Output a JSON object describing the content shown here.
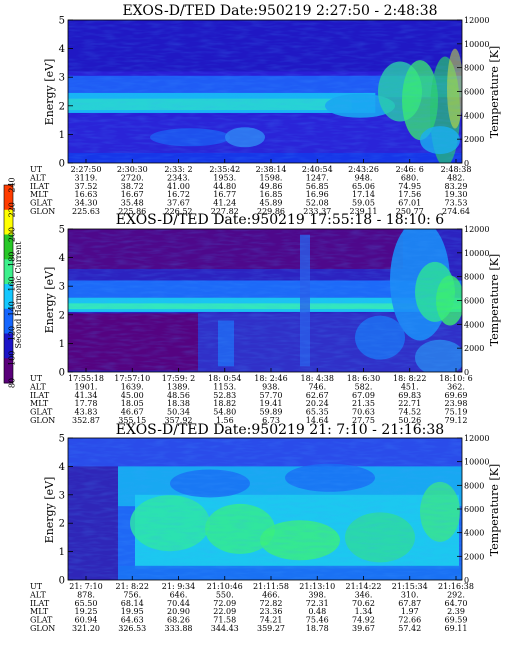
{
  "chart_data": [
    {
      "type": "heatmap",
      "title": "EXOS-D/TED   Date:950219  2:27:50 - 2:48:38",
      "ylabel": "Energy [eV]",
      "y2label": "Temperature [K]",
      "ylim": [
        0,
        5
      ],
      "y2lim": [
        0,
        12000
      ],
      "yticks": [
        "0",
        "1",
        "2",
        "3",
        "4",
        "5"
      ],
      "y2ticks": [
        "0",
        "2000",
        "4000",
        "6000",
        "8000",
        "10000",
        "12000"
      ],
      "row_labels": [
        "UT",
        "ALT",
        "ILAT",
        "MLT",
        "GLAT",
        "GLON"
      ],
      "columns": [
        [
          "2:27:50",
          "3119.",
          "37.52",
          "16.63",
          "34.30",
          "225.63"
        ],
        [
          "2:30:30",
          "2720.",
          "38.72",
          "16.67",
          "35.48",
          "225.86"
        ],
        [
          "2:33: 2",
          "2343.",
          "41.00",
          "16.72",
          "37.67",
          "226.52"
        ],
        [
          "2:35:42",
          "1953.",
          "44.80",
          "16.77",
          "41.24",
          "227.82"
        ],
        [
          "2:38:14",
          "1598.",
          "49.86",
          "16.85",
          "45.89",
          "229.86"
        ],
        [
          "2:40:54",
          "1247.",
          "56.85",
          "16.96",
          "52.08",
          "233.37"
        ],
        [
          "2:43:26",
          "948.",
          "65.06",
          "17.14",
          "59.05",
          "239.11"
        ],
        [
          "2:46: 6",
          "680.",
          "74.95",
          "17.56",
          "67.01",
          "250.77"
        ],
        [
          "2:48:38",
          "482.",
          "83.29",
          "19.30",
          "73.53",
          "274.64"
        ]
      ]
    },
    {
      "type": "heatmap",
      "title": "EXOS-D/TED   Date:950219  17:55:18 - 18:10: 6",
      "ylabel": "Energy [eV]",
      "y2label": "Temperature [K]",
      "ylim": [
        0,
        5
      ],
      "y2lim": [
        0,
        12000
      ],
      "yticks": [
        "0",
        "1",
        "2",
        "3",
        "4",
        "5"
      ],
      "y2ticks": [
        "0",
        "2000",
        "4000",
        "6000",
        "8000",
        "10000",
        "12000"
      ],
      "row_labels": [
        "UT",
        "ALT",
        "ILAT",
        "MLT",
        "GLAT",
        "GLON"
      ],
      "columns": [
        [
          "17:55:18",
          "1901.",
          "41.34",
          "17.78",
          "43.83",
          "352.87"
        ],
        [
          "17:57:10",
          "1639.",
          "45.00",
          "18.05",
          "46.67",
          "355.15"
        ],
        [
          "17:59: 2",
          "1389.",
          "48.56",
          "18.38",
          "50.34",
          "357.92"
        ],
        [
          "18: 0:54",
          "1153.",
          "52.83",
          "18.82",
          "54.80",
          "1.56"
        ],
        [
          "18: 2:46",
          "938.",
          "57.70",
          "19.41",
          "59.89",
          "6.73"
        ],
        [
          "18: 4:38",
          "746.",
          "62.67",
          "20.24",
          "65.35",
          "14.64"
        ],
        [
          "18: 6:30",
          "582.",
          "67.09",
          "21.35",
          "70.63",
          "27.75"
        ],
        [
          "18: 8:22",
          "451.",
          "69.83",
          "22.71",
          "74.52",
          "50.26"
        ],
        [
          "18:10: 6",
          "362.",
          "69.69",
          "23.98",
          "75.19",
          "79.12"
        ]
      ]
    },
    {
      "type": "heatmap",
      "title": "EXOS-D/TED   Date:950219  21: 7:10 - 21:16:38",
      "ylabel": "Energy [eV]",
      "y2label": "Temperature [K]",
      "ylim": [
        0,
        5
      ],
      "y2lim": [
        0,
        12000
      ],
      "yticks": [
        "0",
        "1",
        "2",
        "3",
        "4",
        "5"
      ],
      "y2ticks": [
        "0",
        "2000",
        "4000",
        "6000",
        "8000",
        "10000",
        "12000"
      ],
      "row_labels": [
        "UT",
        "ALT",
        "ILAT",
        "MLT",
        "GLAT",
        "GLON"
      ],
      "columns": [
        [
          "21: 7:10",
          "878.",
          "65.50",
          "19.25",
          "60.94",
          "321.20"
        ],
        [
          "21: 8:22",
          "756.",
          "68.14",
          "19.95",
          "64.63",
          "326.53"
        ],
        [
          "21: 9:34",
          "646.",
          "70.44",
          "20.90",
          "68.26",
          "333.88"
        ],
        [
          "21:10:46",
          "550.",
          "72.09",
          "22.09",
          "71.58",
          "344.43"
        ],
        [
          "21:11:58",
          "466.",
          "72.82",
          "23.36",
          "74.21",
          "359.27"
        ],
        [
          "21:13:10",
          "398.",
          "72.31",
          "0.48",
          "75.46",
          "18.78"
        ],
        [
          "21:14:22",
          "346.",
          "70.62",
          "1.34",
          "74.92",
          "39.67"
        ],
        [
          "21:15:34",
          "310.",
          "67.87",
          "1.97",
          "72.66",
          "57.42"
        ],
        [
          "21:16:38",
          "292.",
          "64.70",
          "2.39",
          "69.59",
          "69.11"
        ]
      ]
    }
  ],
  "colorbar": {
    "label": "Second Harmonic Current",
    "ticks": [
      "80",
      "100",
      "120",
      "140",
      "160",
      "180",
      "200",
      "220",
      "240"
    ],
    "colors": [
      "#000000",
      "#5a007a",
      "#1c14c8",
      "#1466ff",
      "#14c8ff",
      "#3cf08c",
      "#28c828",
      "#ffff00",
      "#ff3c00"
    ]
  }
}
